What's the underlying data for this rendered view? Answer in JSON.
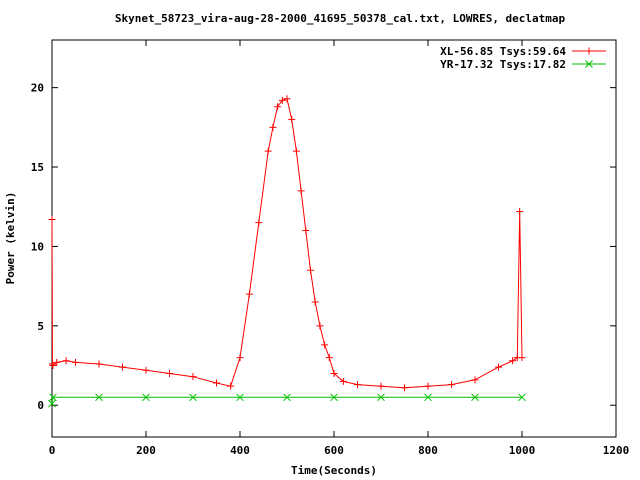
{
  "chart_data": {
    "type": "line",
    "title": "Skynet_58723_vira-aug-28-2000_41695_50378_cal.txt, LOWRES, declatmap",
    "xlabel": "Time(Seconds)",
    "ylabel": "Power (kelvin)",
    "xlim": [
      0,
      1200
    ],
    "ylim": [
      -2,
      23
    ],
    "xticks": [
      0,
      200,
      400,
      600,
      800,
      1000,
      1200
    ],
    "yticks": [
      0,
      5,
      10,
      15,
      20
    ],
    "grid": false,
    "legend_position": "top-right",
    "series": [
      {
        "name": "XL-56.85 Tsys:59.64",
        "color": "#ff0000",
        "marker": "plus",
        "x": [
          0,
          1,
          2,
          10,
          30,
          50,
          100,
          150,
          200,
          250,
          300,
          350,
          380,
          400,
          420,
          440,
          460,
          470,
          480,
          490,
          500,
          510,
          520,
          530,
          540,
          550,
          560,
          570,
          580,
          590,
          600,
          620,
          650,
          700,
          750,
          800,
          850,
          900,
          950,
          980,
          990,
          995,
          1000
        ],
        "values": [
          11.7,
          2.6,
          2.5,
          2.7,
          2.8,
          2.7,
          2.6,
          2.4,
          2.2,
          2.0,
          1.8,
          1.4,
          1.2,
          3.0,
          7.0,
          11.5,
          16.0,
          17.5,
          18.8,
          19.2,
          19.3,
          18.0,
          16.0,
          13.5,
          11.0,
          8.5,
          6.5,
          5.0,
          3.8,
          3.0,
          2.0,
          1.5,
          1.3,
          1.2,
          1.1,
          1.2,
          1.3,
          1.6,
          2.4,
          2.8,
          3.0,
          12.2,
          3.0
        ]
      },
      {
        "name": "YR-17.32 Tsys:17.82",
        "color": "#00c000",
        "marker": "cross",
        "x": [
          0,
          2,
          100,
          200,
          300,
          400,
          500,
          600,
          700,
          800,
          900,
          1000
        ],
        "values": [
          0.1,
          0.5,
          0.5,
          0.5,
          0.5,
          0.5,
          0.5,
          0.5,
          0.5,
          0.5,
          0.5,
          0.5
        ]
      }
    ]
  }
}
